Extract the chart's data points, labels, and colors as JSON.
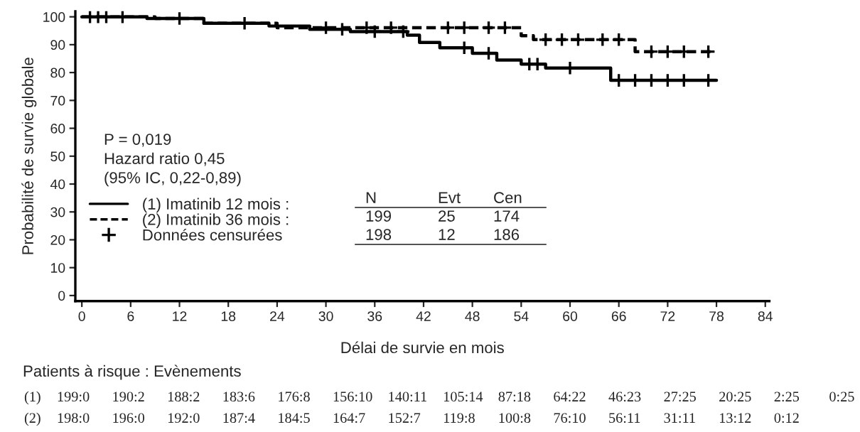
{
  "chart_data": {
    "type": "step",
    "xlabel": "Délai de survie en mois",
    "ylabel": "Probabilité de survie globale",
    "xlim": [
      -0.8,
      84.5
    ],
    "ylim": [
      -2,
      102
    ],
    "xticks": [
      0,
      6,
      12,
      18,
      24,
      30,
      36,
      42,
      48,
      54,
      60,
      66,
      72,
      78,
      84
    ],
    "yticks": [
      0,
      10,
      20,
      30,
      40,
      50,
      60,
      70,
      80,
      90,
      100
    ],
    "grid": false,
    "legend": "left",
    "series": [
      {
        "name": "(1) Imatinib 12 mois :",
        "color": "#000000",
        "line_style": "solid",
        "x": [
          0,
          8,
          15,
          23,
          28,
          33,
          40,
          41.5,
          44,
          48,
          51,
          54,
          57,
          65,
          78
        ],
        "values": [
          100,
          99.4,
          97.7,
          96.7,
          95.5,
          94.7,
          93.4,
          90.8,
          88.9,
          86.9,
          84.5,
          83,
          81.6,
          77.2,
          77.2
        ]
      },
      {
        "name": "(2) Imatinib 36 mois :",
        "color": "#000000",
        "line_style": "dashed",
        "x": [
          0,
          9,
          15,
          24,
          54,
          55.5,
          68,
          77.6
        ],
        "values": [
          100,
          99.4,
          97.7,
          96.1,
          93.2,
          91.8,
          87.5,
          87.5
        ]
      },
      {
        "name": "Données censurées",
        "type": "scatter",
        "marker": "cross",
        "color": "#000000",
        "x": [
          1,
          3,
          20,
          32,
          36,
          39.5,
          47,
          50,
          55,
          56,
          60,
          66,
          68,
          70,
          72,
          74,
          77,
          2,
          5,
          12,
          30,
          35,
          38,
          45,
          47,
          50,
          52,
          57,
          59,
          61,
          64,
          66,
          70,
          72,
          74,
          77
        ],
        "values": [
          100,
          100,
          97.7,
          95.5,
          94.7,
          94.7,
          88.9,
          86.9,
          83,
          83,
          81.6,
          77.2,
          77.2,
          77.2,
          77.2,
          77.2,
          77.2,
          100,
          100,
          99.4,
          96.1,
          96.1,
          96.1,
          96.1,
          96.1,
          96.1,
          96.1,
          91.8,
          91.8,
          91.8,
          91.8,
          91.8,
          87.5,
          87.5,
          87.5,
          87.5
        ]
      }
    ],
    "annotations": [
      "P = 0,019",
      "Hazard ratio 0,45",
      "(95% IC, 0,22-0,89)",
      "N  Evt  Cen",
      "199  25  174",
      "198  12  186",
      "Patients à risque : Evènements",
      "(1)  199:0  190:2  188:2  183:6  176:8  156:10  140:11  105:14  87:18  64:22  46:23  27:25  20:25  2:25  0:25",
      "(2)  198:0  196:0  192:0  187:4  184:5  164:7  152:7  119:8  100:8  76:10  56:11  31:11  13:12  0:12"
    ]
  }
}
